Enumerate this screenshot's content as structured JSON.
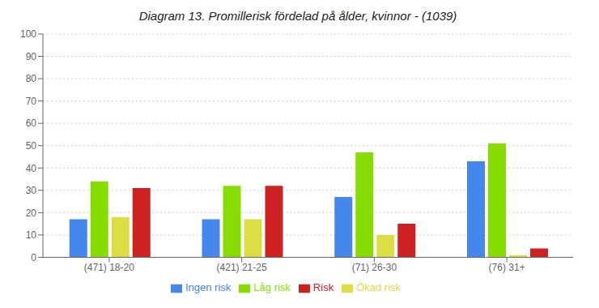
{
  "chart_data": {
    "type": "bar",
    "title": "Diagram 13. Promillerisk fördelad på ålder, kvinnor - (1039)",
    "categories": [
      "(471) 18-20",
      "(421) 21-25",
      "(71) 26-30",
      "(76) 31+"
    ],
    "series": [
      {
        "name": "Ingen risk",
        "color": "#4488ee",
        "values": [
          17,
          17,
          27,
          43
        ]
      },
      {
        "name": "Låg risk",
        "color": "#88dd00",
        "values": [
          34,
          32,
          47,
          51
        ]
      },
      {
        "name": "Ökad risk",
        "color": "#dddd44",
        "values": [
          18,
          17,
          10,
          1
        ]
      },
      {
        "name": "Risk",
        "color": "#cc2222",
        "values": [
          31,
          32,
          15,
          4
        ]
      }
    ],
    "ylim": [
      0,
      100
    ],
    "yticks": [
      0,
      10,
      20,
      30,
      40,
      50,
      60,
      70,
      80,
      90,
      100
    ],
    "grid": true,
    "legend": "bottom"
  }
}
